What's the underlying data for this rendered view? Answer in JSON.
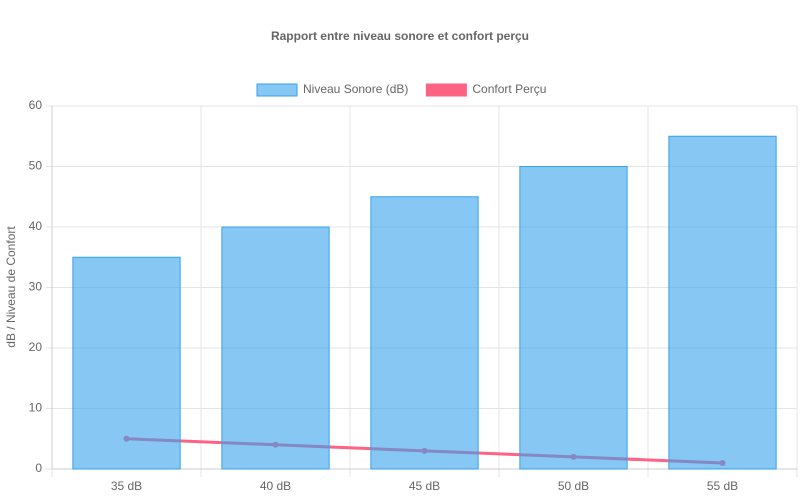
{
  "chart_data": {
    "type": "bar",
    "title": "Rapport entre niveau sonore et confort perçu",
    "y_label": "dB / Niveau de Confort",
    "categories": [
      "35 dB",
      "40 dB",
      "45 dB",
      "50 dB",
      "55 dB"
    ],
    "series": [
      {
        "name": "Niveau Sonore (dB)",
        "type": "bar",
        "color": "#36a2eb",
        "values": [
          35,
          40,
          45,
          50,
          55
        ]
      },
      {
        "name": "Confort Perçu",
        "type": "line",
        "color": "#ff6384",
        "values": [
          5,
          4,
          3,
          2,
          1
        ]
      }
    ],
    "ylim": [
      0,
      60
    ],
    "yticks": [
      0,
      10,
      20,
      30,
      40,
      50,
      60
    ],
    "grid": true,
    "legend": "top"
  }
}
